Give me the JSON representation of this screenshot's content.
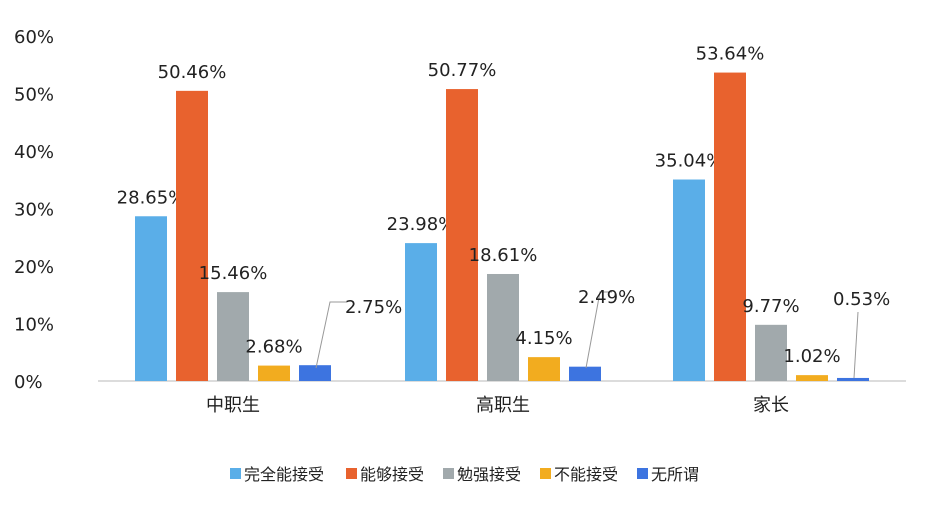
{
  "chart_data": {
    "type": "bar",
    "title": "",
    "xlabel": "",
    "ylabel": "",
    "ylim": [
      0,
      60
    ],
    "yticks": [
      "0%",
      "10%",
      "20%",
      "30%",
      "40%",
      "50%",
      "60%"
    ],
    "categories": [
      "中职生",
      "高职生",
      "家长"
    ],
    "series": [
      {
        "name": "完全能接受",
        "color": "#5aaee8",
        "values": [
          28.65,
          23.98,
          35.04
        ],
        "labels": [
          "28.65%",
          "23.98%",
          "35.04%"
        ]
      },
      {
        "name": "能够接受",
        "color": "#e8622e",
        "values": [
          50.46,
          50.77,
          53.64
        ],
        "labels": [
          "50.46%",
          "50.77%",
          "53.64%"
        ]
      },
      {
        "name": "勉强接受",
        "color": "#a1a9ac",
        "values": [
          15.46,
          18.61,
          9.77
        ],
        "labels": [
          "15.46%",
          "18.61%",
          "9.77%"
        ]
      },
      {
        "name": "不能接受",
        "color": "#f2ac1f",
        "values": [
          2.68,
          4.15,
          1.02
        ],
        "labels": [
          "2.68%",
          "4.15%",
          "1.02%"
        ]
      },
      {
        "name": "无所谓",
        "color": "#3d74e0",
        "values": [
          2.75,
          2.49,
          0.53
        ],
        "labels": [
          "2.75%",
          "2.49%",
          "0.53%"
        ]
      }
    ],
    "legend": "bottom",
    "grid": false
  }
}
